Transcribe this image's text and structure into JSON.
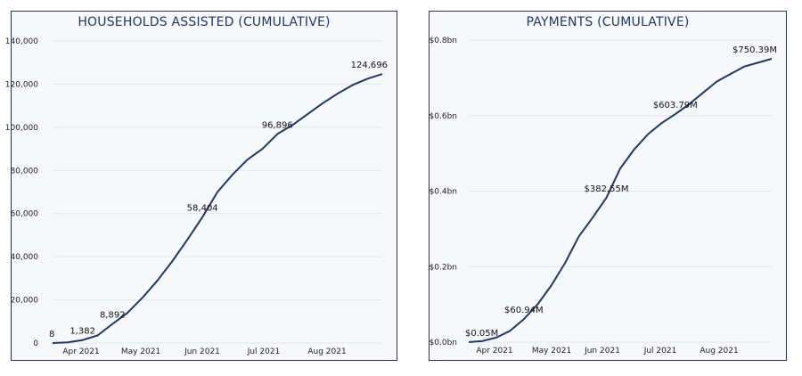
{
  "chart_data": [
    {
      "type": "line",
      "title": "HOUSEHOLDS ASSISTED (CUMULATIVE)",
      "xlabel": "",
      "ylabel": "",
      "x_ticks": [
        "Apr 2021",
        "May 2021",
        "Jun 2021",
        "Jul 2021",
        "Aug 2021"
      ],
      "y_ticks": [
        "0",
        "20,000",
        "40,000",
        "60,000",
        "80,000",
        "100,000",
        "120,000",
        "140,000"
      ],
      "ylim": [
        0,
        140000
      ],
      "xlim": [
        0,
        22
      ],
      "grid": true,
      "line_color": "#1f3864",
      "series": [
        {
          "x": [
            0,
            1,
            2,
            3,
            4,
            5,
            6,
            7,
            8,
            9,
            10,
            11,
            12,
            13,
            14,
            15,
            16,
            17,
            18,
            19,
            20,
            21,
            22
          ],
          "values": [
            8,
            300,
            1382,
            3500,
            8892,
            14000,
            21000,
            29000,
            38000,
            48000,
            58404,
            70000,
            78000,
            85000,
            90000,
            96896,
            101000,
            106000,
            111000,
            115500,
            119500,
            122500,
            124696
          ]
        }
      ],
      "data_labels": [
        {
          "x": 0,
          "value": 8,
          "text": "8"
        },
        {
          "x": 2,
          "value": 1382,
          "text": "1,382"
        },
        {
          "x": 4,
          "value": 8892,
          "text": "8,892"
        },
        {
          "x": 10,
          "value": 58404,
          "text": "58,404"
        },
        {
          "x": 15,
          "value": 96896,
          "text": "96,896"
        },
        {
          "x": 22,
          "value": 124696,
          "text": "124,696"
        }
      ]
    },
    {
      "type": "line",
      "title": "PAYMENTS (CUMULATIVE)",
      "xlabel": "",
      "ylabel": "",
      "x_ticks": [
        "Apr 2021",
        "May 2021",
        "Jun 2021",
        "Jul 2021",
        "Aug 2021"
      ],
      "y_ticks": [
        "$0.0bn",
        "$0.2bn",
        "$0.4bn",
        "$0.6bn",
        "$0.8bn"
      ],
      "ylim": [
        0,
        0.8
      ],
      "xlim": [
        0,
        22
      ],
      "grid": true,
      "line_color": "#1f3864",
      "series": [
        {
          "x": [
            0,
            1,
            2,
            3,
            4,
            5,
            6,
            7,
            8,
            9,
            10,
            11,
            12,
            13,
            14,
            15,
            16,
            17,
            18,
            19,
            20,
            21,
            22
          ],
          "values": [
            5e-05,
            0.003,
            0.012,
            0.03,
            0.06094,
            0.1,
            0.15,
            0.21,
            0.28,
            0.33,
            0.38255,
            0.46,
            0.51,
            0.55,
            0.58,
            0.60379,
            0.63,
            0.66,
            0.69,
            0.71,
            0.73,
            0.74,
            0.75039
          ]
        }
      ],
      "data_labels": [
        {
          "x": 0,
          "value": 5e-05,
          "text": "$0.05M"
        },
        {
          "x": 4,
          "value": 0.06094,
          "text": "$60.94M"
        },
        {
          "x": 10,
          "value": 0.38255,
          "text": "$382.55M"
        },
        {
          "x": 15,
          "value": 0.60379,
          "text": "$603.79M"
        },
        {
          "x": 22,
          "value": 0.75039,
          "text": "$750.39M"
        }
      ]
    }
  ]
}
